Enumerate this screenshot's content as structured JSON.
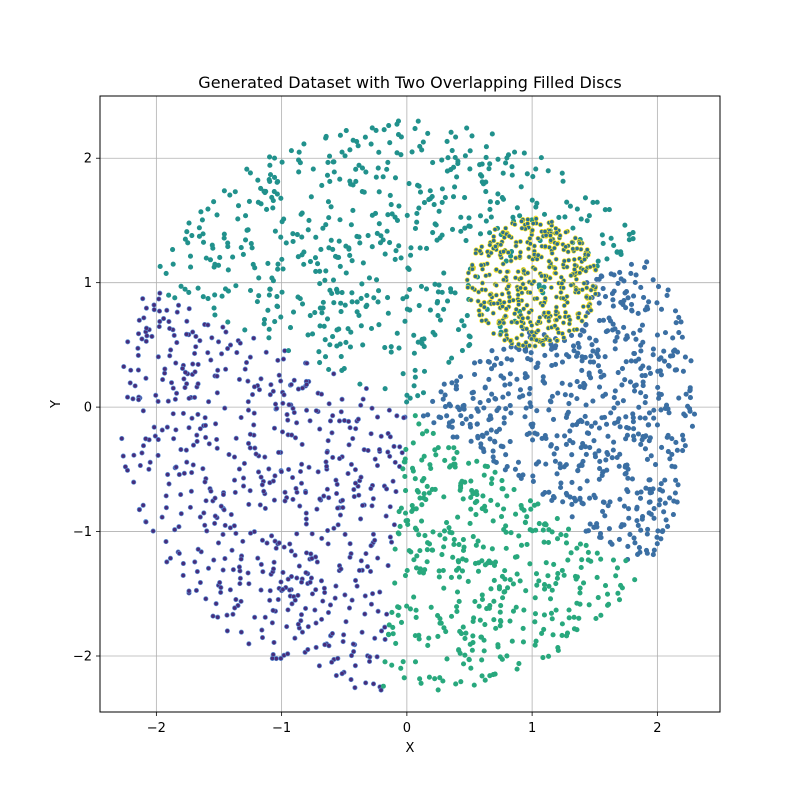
{
  "chart_data": {
    "type": "scatter",
    "title": "Generated Dataset with Two Overlapping Filled Discs",
    "xlabel": "X",
    "ylabel": "Y",
    "xlim": [
      -2.45,
      2.5
    ],
    "ylim": [
      -2.45,
      2.5
    ],
    "x_ticks": [
      -2,
      -1,
      0,
      1,
      2
    ],
    "y_ticks": [
      -2,
      -1,
      0,
      1,
      2
    ],
    "x_tick_labels": [
      "−2",
      "−1",
      "0",
      "1",
      "2"
    ],
    "y_tick_labels": [
      "−2",
      "−1",
      "0",
      "1",
      "2"
    ],
    "grid": true,
    "legend": "none",
    "description_of_generation": "Points uniformly filling a large disc of radius ~2.3 centered at (0,0), colored by angular sector, plus a small dense disc of radius ~0.5 centered at (1,1)",
    "series": [
      {
        "color": "#472d7b",
        "edge_color": "#5b8fd6",
        "region": {
          "shape": "disc-sector",
          "center": [
            0,
            0
          ],
          "radius": 2.3,
          "angle_from_deg": 155,
          "angle_to_deg": 265
        },
        "count": 620
      },
      {
        "color": "#21918c",
        "edge_color": "#21918c",
        "region": {
          "shape": "disc-sector",
          "center": [
            0,
            0
          ],
          "radius": 2.3,
          "angle_from_deg": 35,
          "angle_to_deg": 155
        },
        "count": 560
      },
      {
        "color": "#3b6fa3",
        "edge_color": "#3b6fa3",
        "region": {
          "shape": "disc-sector",
          "center": [
            0,
            0
          ],
          "radius": 2.3,
          "angle_from_deg": -35,
          "angle_to_deg": 35
        },
        "count": 640
      },
      {
        "color": "#28a87d",
        "edge_color": "#28a87d",
        "region": {
          "shape": "disc-sector",
          "center": [
            0,
            0
          ],
          "radius": 2.3,
          "angle_from_deg": 265,
          "angle_to_deg": 325
        },
        "count": 420
      },
      {
        "color": "#2c6f8e",
        "edge_color": "#fde725",
        "region": {
          "shape": "disc",
          "center": [
            1,
            1
          ],
          "radius": 0.52
        },
        "count": 420
      }
    ]
  }
}
